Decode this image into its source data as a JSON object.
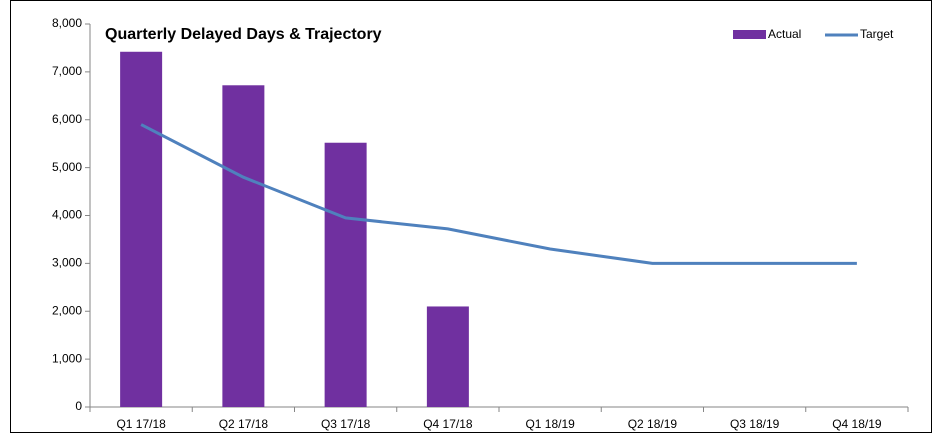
{
  "chart_data": {
    "type": "bar",
    "title": "Quarterly Delayed Days & Trajectory",
    "categories": [
      "Q1 17/18",
      "Q2 17/18",
      "Q3 17/18",
      "Q4 17/18",
      "Q1 18/19",
      "Q2 18/19",
      "Q3 18/19",
      "Q4 18/19"
    ],
    "series": [
      {
        "name": "Actual",
        "type": "bar",
        "color": "#7030a0",
        "values": [
          7420,
          6720,
          5520,
          2100,
          null,
          null,
          null,
          null
        ]
      },
      {
        "name": "Target",
        "type": "line",
        "color": "#4f81bd",
        "values": [
          5900,
          4800,
          3950,
          3720,
          3300,
          3000,
          3000,
          3000
        ]
      }
    ],
    "ylim": [
      0,
      8000
    ],
    "yticks": [
      0,
      {
        "value": 1000,
        "label": "1,000"
      },
      {
        "value": 2000,
        "label": "2,000"
      },
      {
        "value": 3000,
        "label": "3,000"
      },
      {
        "value": 4000,
        "label": "4,000"
      },
      {
        "value": 5000,
        "label": "5,000"
      },
      {
        "value": 6000,
        "label": "6,000"
      },
      {
        "value": 7000,
        "label": "7,000"
      },
      {
        "value": 8000,
        "label": "8,000"
      }
    ],
    "legend": "top-right"
  }
}
